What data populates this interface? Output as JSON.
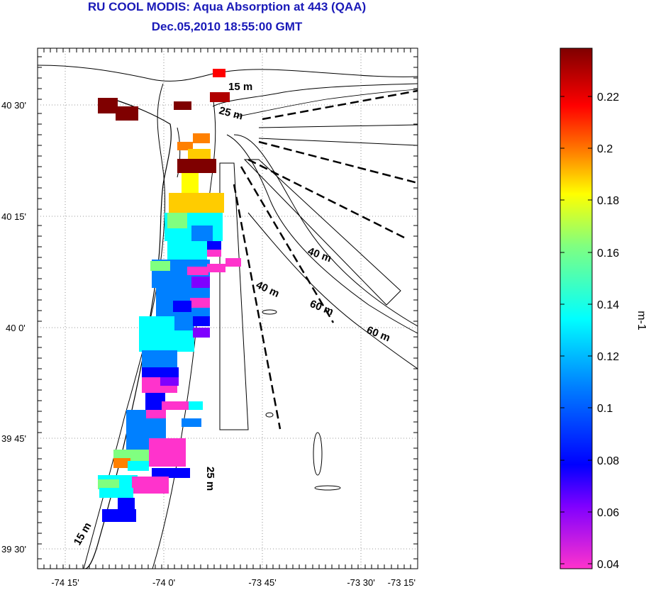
{
  "title": "RU COOL MODIS: Aqua Absorption at 443 (QAA)",
  "subtitle": "Dec.05,2010 18:55:00 GMT",
  "lon_ticks": [
    "-74 15'",
    "-74 0'",
    "-73 45'",
    "-73 30'",
    "-73 15'"
  ],
  "lat_ticks": [
    "40 30'",
    "40 15'",
    "40 0'",
    "39 45'",
    "39 30'"
  ],
  "depth_labels": [
    "15 m",
    "25 m",
    "40 m",
    "40 m",
    "60 m",
    "60 m",
    "25 m",
    "15 m"
  ],
  "colorbar": {
    "unit": "m-1",
    "ticks": [
      "0.22",
      "0.2",
      "0.18",
      "0.16",
      "0.14",
      "0.12",
      "0.1",
      "0.08",
      "0.06",
      "0.04"
    ],
    "colors": [
      "#7f0000",
      "#ff0000",
      "#ff8000",
      "#ffff00",
      "#80ff80",
      "#00ffff",
      "#0080ff",
      "#0000ff",
      "#7f00ff",
      "#ff33cc"
    ]
  }
}
